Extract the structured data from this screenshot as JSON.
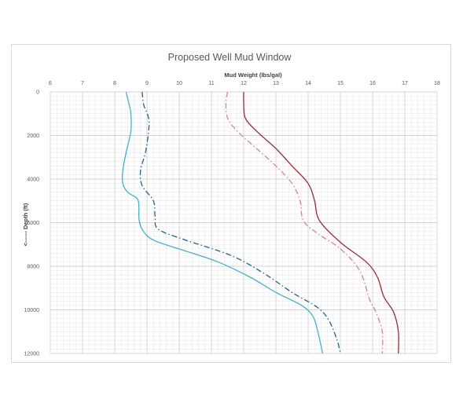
{
  "chart_data": {
    "type": "line",
    "title": "Proposed Well Mud Window",
    "xlabel": "Mud Weight (lbs/gal)",
    "ylabel": "<------ Depth (ft)",
    "xlim": [
      6,
      18
    ],
    "ylim": [
      0,
      12000
    ],
    "y_inverted": true,
    "x_axis_position": "top",
    "x_ticks": [
      6,
      7,
      8,
      9,
      10,
      11,
      12,
      13,
      14,
      15,
      16,
      17,
      18
    ],
    "y_ticks": [
      0,
      2000,
      4000,
      6000,
      8000,
      10000,
      12000
    ],
    "grid": true,
    "legend": "none",
    "series": [
      {
        "color": "#3fb0d8",
        "style": "solid",
        "points": [
          [
            8.35,
            0
          ],
          [
            8.45,
            600
          ],
          [
            8.5,
            1000
          ],
          [
            8.5,
            1800
          ],
          [
            8.35,
            2800
          ],
          [
            8.25,
            3600
          ],
          [
            8.25,
            4200
          ],
          [
            8.4,
            4600
          ],
          [
            8.7,
            4900
          ],
          [
            8.75,
            5300
          ],
          [
            8.75,
            5800
          ],
          [
            8.85,
            6300
          ],
          [
            9.2,
            6800
          ],
          [
            10.2,
            7300
          ],
          [
            11.2,
            7800
          ],
          [
            12.2,
            8500
          ],
          [
            13.0,
            9200
          ],
          [
            13.8,
            9800
          ],
          [
            14.15,
            10300
          ],
          [
            14.3,
            11000
          ],
          [
            14.45,
            12000
          ]
        ]
      },
      {
        "color": "#1f5f99",
        "style": "dashdot",
        "points": [
          [
            8.85,
            0
          ],
          [
            8.9,
            600
          ],
          [
            9.05,
            1200
          ],
          [
            9.05,
            1800
          ],
          [
            8.95,
            2800
          ],
          [
            8.8,
            3600
          ],
          [
            8.85,
            4300
          ],
          [
            9.2,
            5000
          ],
          [
            9.25,
            5700
          ],
          [
            9.35,
            6300
          ],
          [
            10.2,
            6800
          ],
          [
            11.6,
            7500
          ],
          [
            12.6,
            8300
          ],
          [
            13.5,
            9200
          ],
          [
            14.3,
            9900
          ],
          [
            14.65,
            10500
          ],
          [
            14.9,
            11400
          ],
          [
            15.0,
            12000
          ]
        ]
      },
      {
        "color": "#e0828a",
        "style": "dashdot",
        "points": [
          [
            11.5,
            0
          ],
          [
            11.45,
            500
          ],
          [
            11.5,
            1200
          ],
          [
            11.8,
            1800
          ],
          [
            12.4,
            2600
          ],
          [
            13.0,
            3400
          ],
          [
            13.5,
            4200
          ],
          [
            13.75,
            5000
          ],
          [
            13.85,
            5900
          ],
          [
            14.3,
            6500
          ],
          [
            15.0,
            7200
          ],
          [
            15.6,
            8200
          ],
          [
            15.9,
            9500
          ],
          [
            16.1,
            10100
          ],
          [
            16.3,
            11000
          ],
          [
            16.3,
            12000
          ]
        ]
      },
      {
        "color": "#a5282c",
        "style": "solid",
        "points": [
          [
            12.0,
            0
          ],
          [
            12.0,
            500
          ],
          [
            12.05,
            1200
          ],
          [
            12.4,
            1800
          ],
          [
            13.0,
            2600
          ],
          [
            13.5,
            3400
          ],
          [
            14.0,
            4200
          ],
          [
            14.2,
            5000
          ],
          [
            14.35,
            5900
          ],
          [
            15.0,
            6900
          ],
          [
            15.8,
            7800
          ],
          [
            16.15,
            8500
          ],
          [
            16.35,
            9400
          ],
          [
            16.65,
            10100
          ],
          [
            16.8,
            11000
          ],
          [
            16.8,
            12000
          ]
        ]
      }
    ]
  }
}
